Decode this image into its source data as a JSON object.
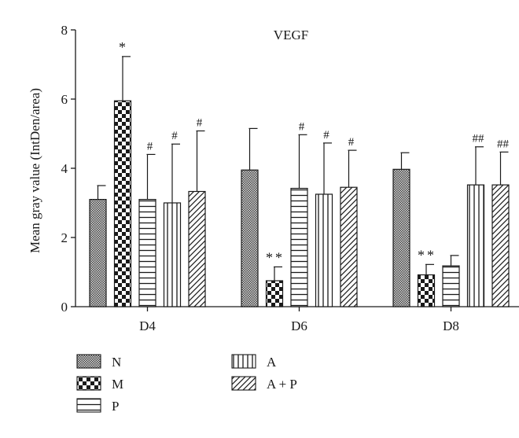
{
  "chart_data": {
    "type": "bar",
    "title": "VEGF",
    "ylabel": "Mean gray value (IntDen/area)",
    "xlabel": "",
    "ylim": [
      0,
      8
    ],
    "yticks": [
      0,
      2,
      4,
      6,
      8
    ],
    "categories": [
      "D4",
      "D6",
      "D8"
    ],
    "series": [
      {
        "name": "N",
        "pattern": "crosshatch",
        "values": [
          3.1,
          3.95,
          3.97
        ],
        "errors": [
          0.4,
          1.2,
          0.48
        ],
        "marks": [
          "",
          "",
          ""
        ]
      },
      {
        "name": "M",
        "pattern": "checker",
        "values": [
          5.95,
          0.75,
          0.92
        ],
        "errors": [
          1.28,
          0.4,
          0.3
        ],
        "marks": [
          "*",
          "**",
          "**"
        ]
      },
      {
        "name": "P",
        "pattern": "hlines",
        "values": [
          3.1,
          3.42,
          1.18
        ],
        "errors": [
          1.3,
          1.55,
          0.3
        ],
        "marks": [
          "#",
          "#",
          ""
        ]
      },
      {
        "name": "A",
        "pattern": "vlines",
        "values": [
          3.0,
          3.25,
          3.52
        ],
        "errors": [
          1.7,
          1.48,
          1.1
        ],
        "marks": [
          "#",
          "#",
          "##"
        ]
      },
      {
        "name": "A + P",
        "pattern": "diagonal",
        "values": [
          3.33,
          3.45,
          3.52
        ],
        "errors": [
          1.75,
          1.07,
          0.95
        ],
        "marks": [
          "#",
          "#",
          "##"
        ]
      }
    ],
    "legend_position": "bottom-left"
  }
}
